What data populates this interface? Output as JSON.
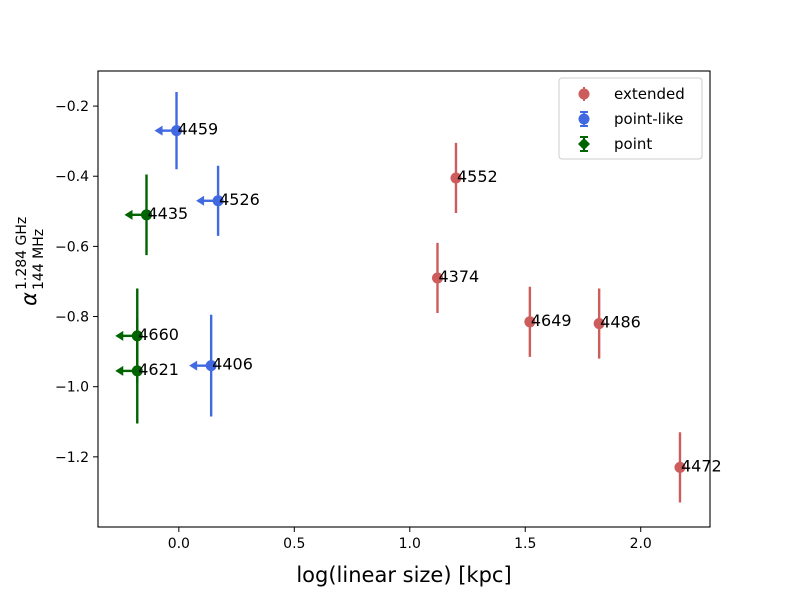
{
  "chart_data": {
    "type": "scatter",
    "title": "",
    "xlabel": "log(linear size) [kpc]",
    "ylabel": {
      "symbol": "α",
      "superscript": "1.284 GHz",
      "subscript": "144 MHz"
    },
    "xlim": [
      -0.35,
      2.3
    ],
    "ylim": [
      -1.4,
      -0.1
    ],
    "xticks": [
      {
        "value": 0.0,
        "label": "0.0"
      },
      {
        "value": 0.5,
        "label": "0.5"
      },
      {
        "value": 1.0,
        "label": "1.0"
      },
      {
        "value": 1.5,
        "label": "1.5"
      },
      {
        "value": 2.0,
        "label": "2.0"
      }
    ],
    "yticks": [
      {
        "value": -0.2,
        "label": "−0.2"
      },
      {
        "value": -0.4,
        "label": "−0.4"
      },
      {
        "value": -0.6,
        "label": "−0.6"
      },
      {
        "value": -0.8,
        "label": "−0.8"
      },
      {
        "value": -1.0,
        "label": "−1.0"
      },
      {
        "value": -1.2,
        "label": "−1.2"
      }
    ],
    "grid": false,
    "legend_position": "top-right",
    "series": [
      {
        "name": "extended",
        "color": "#cd5c5c",
        "points": [
          {
            "label": "4552",
            "x": 1.2,
            "y": -0.405,
            "yerr": 0.1,
            "upper_limit": false
          },
          {
            "label": "4374",
            "x": 1.12,
            "y": -0.69,
            "yerr": 0.1,
            "upper_limit": false
          },
          {
            "label": "4649",
            "x": 1.52,
            "y": -0.815,
            "yerr": 0.1,
            "upper_limit": false
          },
          {
            "label": "4486",
            "x": 1.82,
            "y": -0.82,
            "yerr": 0.1,
            "upper_limit": false
          },
          {
            "label": "4472",
            "x": 2.17,
            "y": -1.23,
            "yerr": 0.1,
            "upper_limit": false
          }
        ]
      },
      {
        "name": "point-like",
        "color": "#4169e1",
        "points": [
          {
            "label": "4459",
            "x": -0.01,
            "y": -0.27,
            "yerr": 0.11,
            "upper_limit": true
          },
          {
            "label": "4526",
            "x": 0.17,
            "y": -0.47,
            "yerr": 0.1,
            "upper_limit": true
          },
          {
            "label": "4406",
            "x": 0.14,
            "y": -0.94,
            "yerr": 0.145,
            "upper_limit": true
          }
        ]
      },
      {
        "name": "point",
        "color": "#006400",
        "points": [
          {
            "label": "4435",
            "x": -0.14,
            "y": -0.51,
            "yerr": 0.115,
            "upper_limit": true
          },
          {
            "label": "4660",
            "x": -0.18,
            "y": -0.855,
            "yerr": 0.135,
            "upper_limit": true
          },
          {
            "label": "4621",
            "x": -0.18,
            "y": -0.955,
            "yerr": 0.15,
            "upper_limit": true
          }
        ]
      }
    ]
  }
}
